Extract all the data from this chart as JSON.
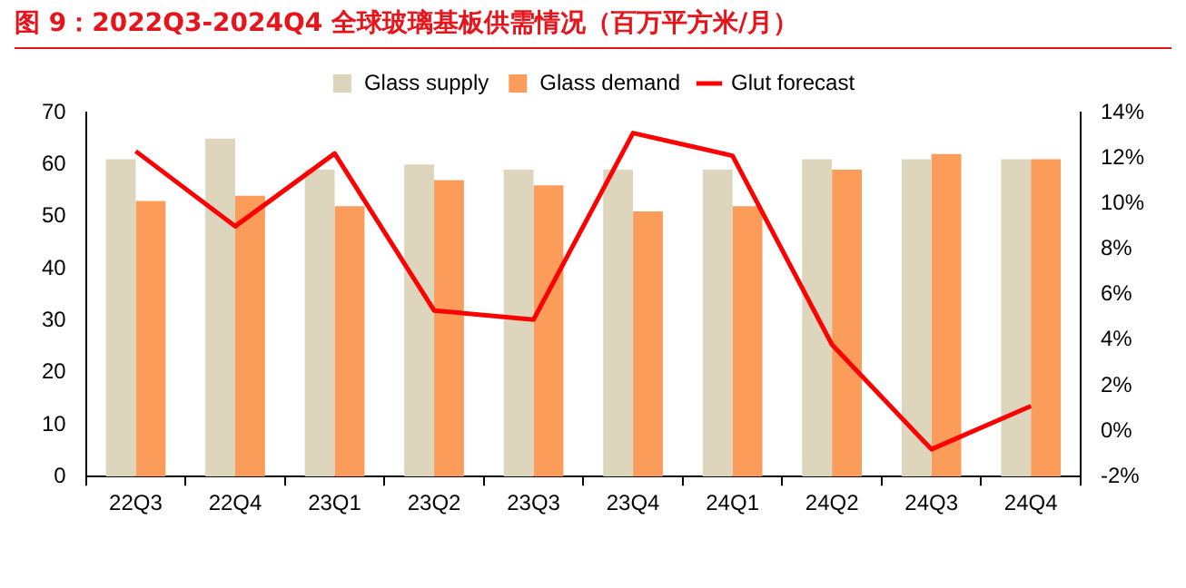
{
  "chart_data": {
    "type": "bar",
    "title": "图 9：2022Q3-2024Q4 全球玻璃基板供需情况（百万平方米/月）",
    "categories": [
      "22Q3",
      "22Q4",
      "23Q1",
      "23Q2",
      "23Q3",
      "23Q4",
      "24Q1",
      "24Q2",
      "24Q3",
      "24Q4"
    ],
    "series": [
      {
        "name": "Glass supply",
        "color": "#ded5bd",
        "values": [
          61,
          65,
          59,
          60,
          59,
          59,
          59,
          61,
          61,
          61
        ]
      },
      {
        "name": "Glass demand",
        "color": "#fb9c5b",
        "values": [
          53,
          54,
          52,
          57,
          56,
          51,
          52,
          59,
          62,
          61
        ]
      },
      {
        "name": "Glut forecast",
        "type": "line",
        "axis": "y2",
        "color": "#ff0000",
        "values": [
          12.3,
          9.0,
          12.2,
          5.3,
          4.9,
          13.1,
          12.1,
          3.8,
          -0.8,
          1.1
        ]
      }
    ],
    "ylim": [
      0,
      70
    ],
    "yticks": [
      0,
      10,
      20,
      30,
      40,
      50,
      60,
      70
    ],
    "y2lim": [
      -2,
      14
    ],
    "y2ticks": [
      {
        "value": -2,
        "label": "-2%"
      },
      {
        "value": 0,
        "label": "0%"
      },
      {
        "value": 2,
        "label": "2%"
      },
      {
        "value": 4,
        "label": "4%"
      },
      {
        "value": 6,
        "label": "6%"
      },
      {
        "value": 8,
        "label": "8%"
      },
      {
        "value": 10,
        "label": "10%"
      },
      {
        "value": 12,
        "label": "12%"
      },
      {
        "value": 14,
        "label": "14%"
      }
    ],
    "grid": false,
    "legend": "top",
    "marker": "none"
  }
}
